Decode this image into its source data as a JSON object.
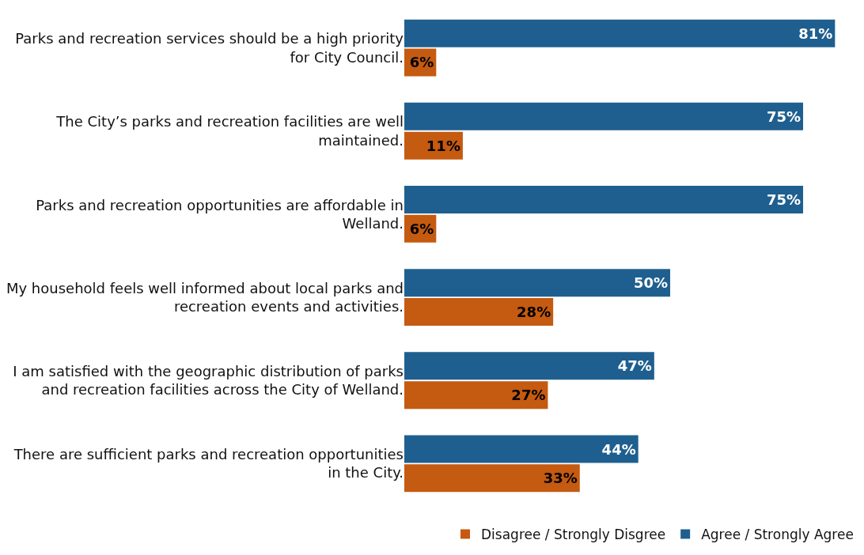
{
  "chart_data": {
    "type": "bar",
    "orientation": "horizontal",
    "categories": [
      "Parks and recreation services should be a high priority for City Council.",
      "The City’s parks and recreation facilities are well maintained.",
      "Parks and recreation opportunities are affordable in Welland.",
      "My household feels well informed about local parks and recreation events and activities.",
      "I am satisfied with the geographic distribution of parks and recreation facilities across the City of Welland.",
      "There are sufficient parks and recreation opportunities in the City."
    ],
    "series": [
      {
        "name": "Agree / Strongly Agree",
        "color": "#1f5f8f",
        "values": [
          81,
          75,
          75,
          50,
          47,
          44
        ],
        "value_labels": [
          "81%",
          "75%",
          "75%",
          "50%",
          "47%",
          "44%"
        ]
      },
      {
        "name": "Disagree / Strongly Disgree",
        "color": "#c55a11",
        "values": [
          6,
          11,
          6,
          28,
          27,
          33
        ],
        "value_labels": [
          "6%",
          "11%",
          "6%",
          "28%",
          "27%",
          "33%"
        ]
      }
    ],
    "tick_labels": "y",
    "legend": "bottom right"
  }
}
